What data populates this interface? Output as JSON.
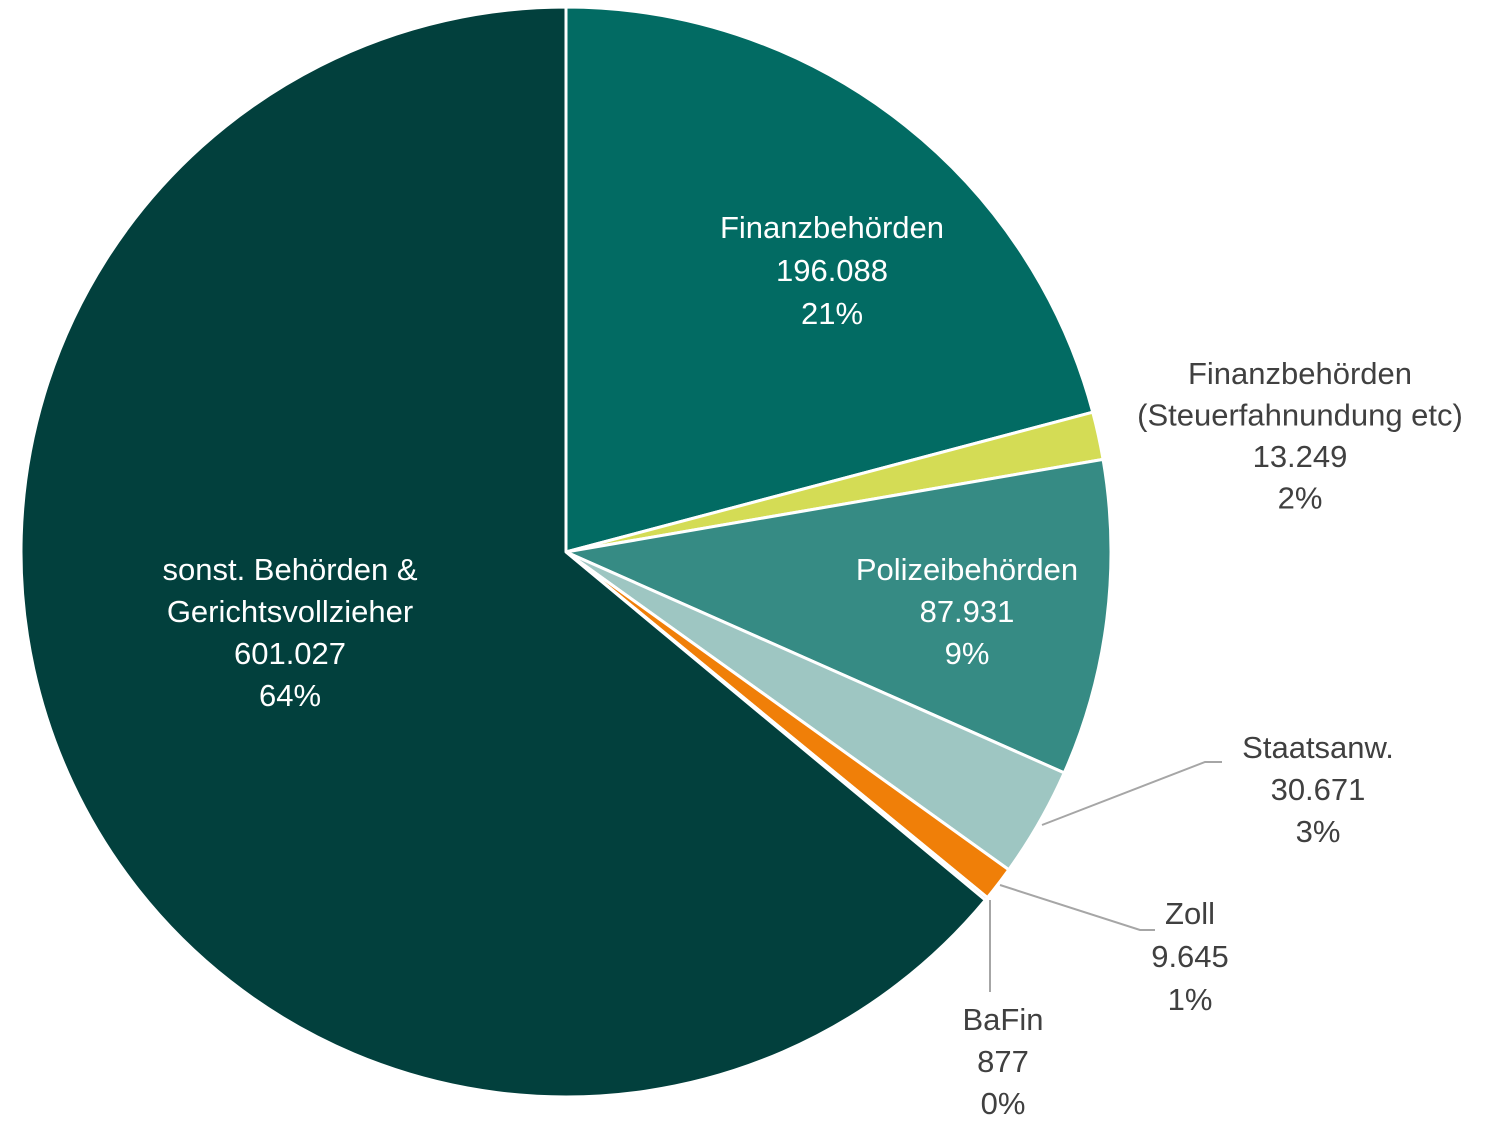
{
  "chart_data": {
    "type": "pie",
    "categories": [
      "Finanzbehörden",
      "Finanzbehörden\n(Steuerfahnundung etc)",
      "Polizeibehörden",
      "Staatsanw.",
      "Zoll",
      "BaFin",
      "sonst. Behörden &\nGerichtsvollzieher"
    ],
    "values": [
      196088,
      13249,
      87931,
      30671,
      9645,
      877,
      601027
    ],
    "value_labels": [
      "196.088",
      "13.249",
      "87.931",
      "30.671",
      "9.645",
      "877",
      "601.027"
    ],
    "percent_labels": [
      "21%",
      "2%",
      "9%",
      "3%",
      "1%",
      "0%",
      "64%"
    ],
    "colors": [
      "#026b63",
      "#d4dc55",
      "#368b84",
      "#9ec6c2",
      "#f07f08",
      "#8c8c8c",
      "#02403d"
    ]
  }
}
